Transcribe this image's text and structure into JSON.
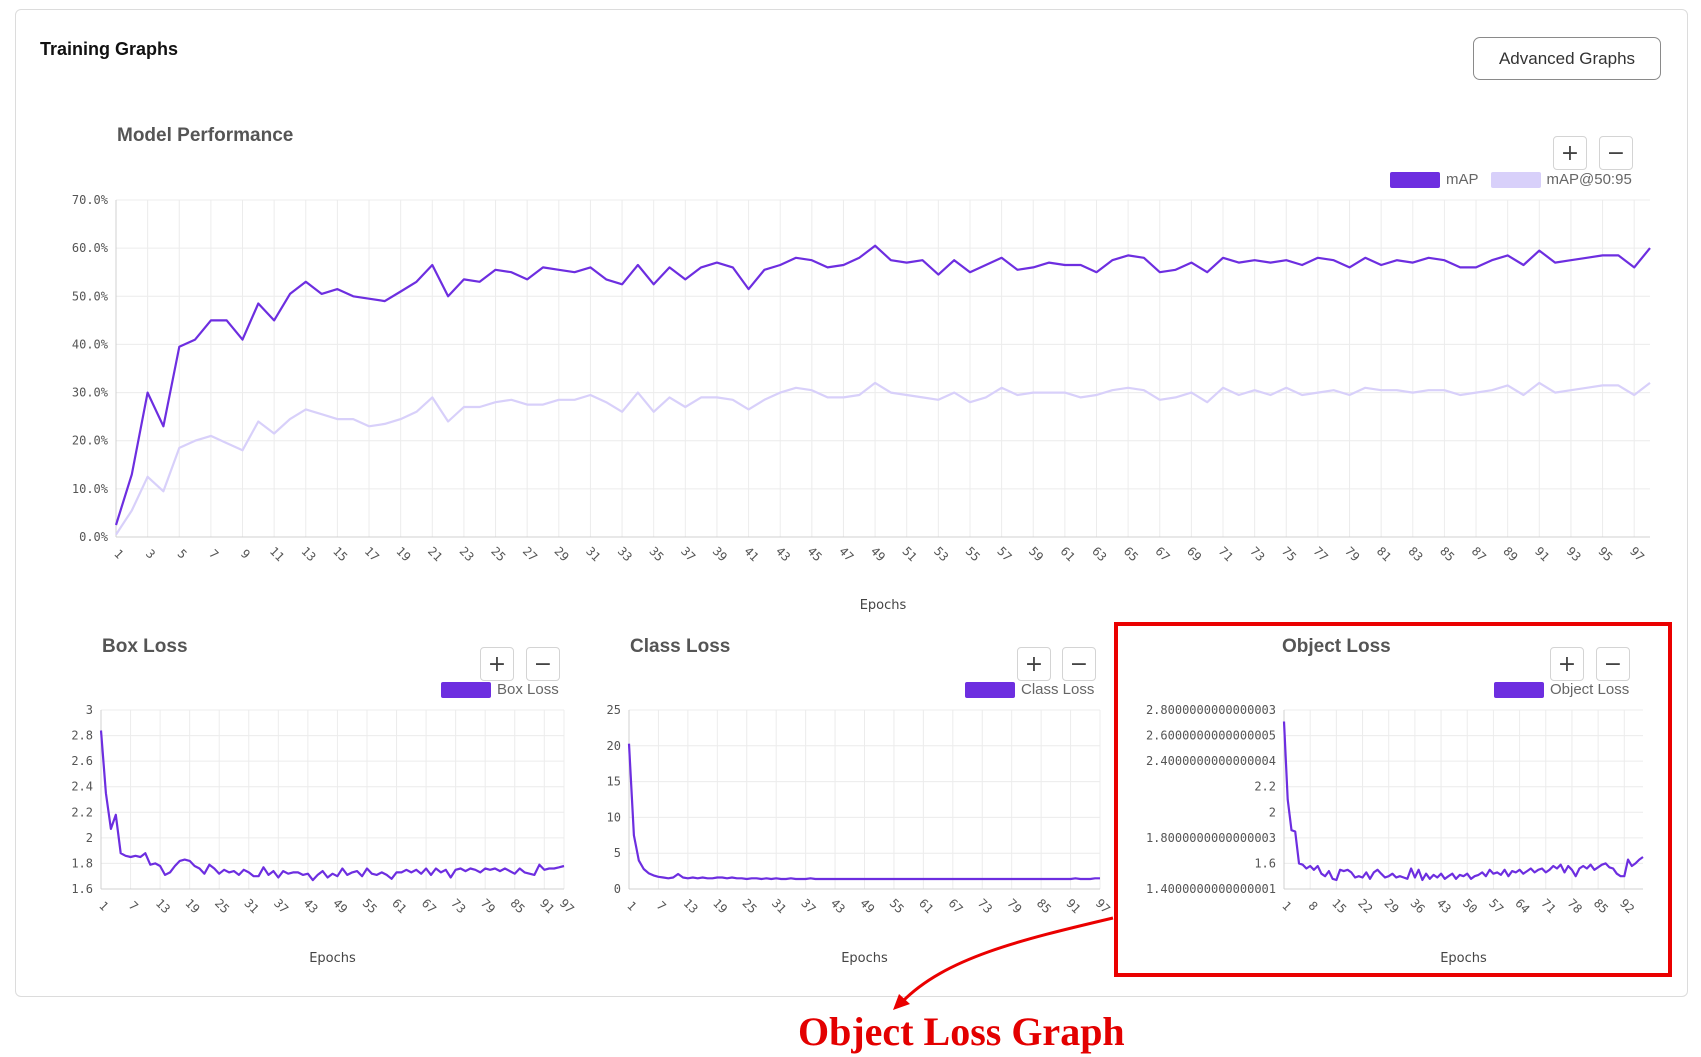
{
  "header": {
    "title": "Training Graphs",
    "advanced_button": "Advanced Graphs"
  },
  "zoom_controls": {
    "plus": "+",
    "minus": "−"
  },
  "colors": {
    "map": "#6d2ee0",
    "map5095": "#d8d0fa",
    "loss": "#6d2ee0",
    "highlight": "#ea0000"
  },
  "annotation": {
    "label": "Object Loss Graph"
  },
  "chart_data": [
    {
      "id": "perf",
      "type": "line",
      "title": "Model Performance",
      "xlabel": "Epochs",
      "ylabel": "",
      "x": [
        1,
        2,
        3,
        4,
        5,
        6,
        7,
        8,
        9,
        10,
        11,
        12,
        13,
        14,
        15,
        16,
        17,
        18,
        19,
        20,
        21,
        22,
        23,
        24,
        25,
        26,
        27,
        28,
        29,
        30,
        31,
        32,
        33,
        34,
        35,
        36,
        37,
        38,
        39,
        40,
        41,
        42,
        43,
        44,
        45,
        46,
        47,
        48,
        49,
        50,
        51,
        52,
        53,
        54,
        55,
        56,
        57,
        58,
        59,
        60,
        61,
        62,
        63,
        64,
        65,
        66,
        67,
        68,
        69,
        70,
        71,
        72,
        73,
        74,
        75,
        76,
        77,
        78,
        79,
        80,
        81,
        82,
        83,
        84,
        85,
        86,
        87,
        88,
        89,
        90,
        91,
        92,
        93,
        94,
        95,
        96,
        97,
        98
      ],
      "xticks": [
        "1",
        "3",
        "5",
        "7",
        "9",
        "11",
        "13",
        "15",
        "17",
        "19",
        "21",
        "23",
        "25",
        "27",
        "29",
        "31",
        "33",
        "35",
        "37",
        "39",
        "41",
        "43",
        "45",
        "47",
        "49",
        "51",
        "53",
        "55",
        "57",
        "59",
        "61",
        "63",
        "65",
        "67",
        "69",
        "71",
        "73",
        "75",
        "77",
        "79",
        "81",
        "83",
        "85",
        "87",
        "89",
        "91",
        "93",
        "95",
        "97"
      ],
      "yticks": [
        "0.0%",
        "10.0%",
        "20.0%",
        "30.0%",
        "40.0%",
        "50.0%",
        "60.0%",
        "70.0%"
      ],
      "ylim": [
        0,
        70
      ],
      "grid": true,
      "legend_position": "top-right",
      "series": [
        {
          "name": "mAP",
          "color": "#6d2ee0",
          "values": [
            2.5,
            13,
            30,
            23,
            39.5,
            41,
            45,
            45,
            41,
            48.5,
            45,
            50.5,
            53,
            50.5,
            51.5,
            50,
            49.5,
            49,
            51,
            53,
            56.5,
            50,
            53.5,
            53,
            55.5,
            55,
            53.5,
            56,
            55.5,
            55,
            56,
            53.5,
            52.5,
            56.5,
            52.5,
            56,
            53.5,
            56,
            57,
            56,
            51.5,
            55.5,
            56.5,
            58,
            57.5,
            56,
            56.5,
            58,
            60.5,
            57.5,
            57,
            57.5,
            54.5,
            57.5,
            55,
            56.5,
            58,
            55.5,
            56,
            57,
            56.5,
            56.5,
            55,
            57.5,
            58.5,
            58,
            55,
            55.5,
            57,
            55,
            58,
            57,
            57.5,
            57,
            57.5,
            56.5,
            58,
            57.5,
            56,
            58,
            56.5,
            57.5,
            57,
            58,
            57.5,
            56,
            56,
            57.5,
            58.5,
            56.5,
            59.5,
            57,
            57.5,
            58,
            58.5,
            58.5,
            56,
            60
          ]
        },
        {
          "name": "mAP@50:95",
          "color": "#d8d0fa",
          "values": [
            0.5,
            5.5,
            12.5,
            9.5,
            18.5,
            20,
            21,
            19.5,
            18,
            24,
            21.5,
            24.5,
            26.5,
            25.5,
            24.5,
            24.5,
            23,
            23.5,
            24.5,
            26,
            29,
            24,
            27,
            27,
            28,
            28.5,
            27.5,
            27.5,
            28.5,
            28.5,
            29.5,
            28,
            26,
            30,
            26,
            29,
            27,
            29,
            29,
            28.5,
            26.5,
            28.5,
            30,
            31,
            30.5,
            29,
            29,
            29.5,
            32,
            30,
            29.5,
            29,
            28.5,
            30,
            28,
            29,
            31,
            29.5,
            30,
            30,
            30,
            29,
            29.5,
            30.5,
            31,
            30.5,
            28.5,
            29,
            30,
            28,
            31,
            29.5,
            30.5,
            29.5,
            31,
            29.5,
            30,
            30.5,
            29.5,
            31,
            30.5,
            30.5,
            30,
            30.5,
            30.5,
            29.5,
            30,
            30.5,
            31.5,
            29.5,
            32,
            30,
            30.5,
            31,
            31.5,
            31.5,
            29.5,
            32
          ]
        }
      ]
    },
    {
      "id": "box",
      "type": "line",
      "title": "Box Loss",
      "xlabel": "Epochs",
      "ylabel": "",
      "xticks": [
        "1",
        "7",
        "13",
        "19",
        "25",
        "31",
        "37",
        "43",
        "49",
        "55",
        "61",
        "67",
        "73",
        "79",
        "85",
        "91",
        "97"
      ],
      "yticks": [
        "1.6",
        "1.8",
        "2",
        "2.2",
        "2.4",
        "2.6",
        "2.8",
        "3"
      ],
      "ylim": [
        1.6,
        3.0
      ],
      "grid": true,
      "legend_position": "top-right",
      "series": [
        {
          "name": "Box Loss",
          "color": "#6d2ee0",
          "values": [
            2.84,
            2.35,
            2.07,
            2.18,
            1.88,
            1.86,
            1.85,
            1.86,
            1.85,
            1.88,
            1.79,
            1.8,
            1.78,
            1.71,
            1.73,
            1.78,
            1.82,
            1.83,
            1.82,
            1.78,
            1.76,
            1.72,
            1.79,
            1.76,
            1.72,
            1.75,
            1.73,
            1.74,
            1.71,
            1.75,
            1.73,
            1.7,
            1.7,
            1.77,
            1.71,
            1.74,
            1.69,
            1.74,
            1.72,
            1.73,
            1.73,
            1.71,
            1.72,
            1.67,
            1.71,
            1.74,
            1.69,
            1.72,
            1.7,
            1.76,
            1.71,
            1.73,
            1.74,
            1.7,
            1.76,
            1.72,
            1.71,
            1.73,
            1.71,
            1.68,
            1.73,
            1.73,
            1.75,
            1.73,
            1.75,
            1.72,
            1.76,
            1.71,
            1.76,
            1.73,
            1.75,
            1.69,
            1.75,
            1.76,
            1.74,
            1.76,
            1.75,
            1.73,
            1.76,
            1.75,
            1.76,
            1.74,
            1.76,
            1.74,
            1.72,
            1.76,
            1.73,
            1.72,
            1.71,
            1.79,
            1.75,
            1.76,
            1.76,
            1.77,
            1.78
          ]
        }
      ]
    },
    {
      "id": "cls",
      "type": "line",
      "title": "Class Loss",
      "xlabel": "Epochs",
      "ylabel": "",
      "xticks": [
        "1",
        "7",
        "13",
        "19",
        "25",
        "31",
        "37",
        "43",
        "49",
        "55",
        "61",
        "67",
        "73",
        "79",
        "85",
        "91",
        "97"
      ],
      "yticks": [
        "0",
        "5",
        "10",
        "15",
        "20",
        "25"
      ],
      "ylim": [
        0,
        25
      ],
      "grid": true,
      "legend_position": "top-right",
      "series": [
        {
          "name": "Class Loss",
          "color": "#6d2ee0",
          "values": [
            20.3,
            7.5,
            4,
            2.8,
            2.2,
            1.9,
            1.7,
            1.6,
            1.5,
            1.6,
            2.1,
            1.6,
            1.5,
            1.6,
            1.5,
            1.6,
            1.5,
            1.5,
            1.6,
            1.6,
            1.5,
            1.6,
            1.5,
            1.5,
            1.4,
            1.5,
            1.5,
            1.4,
            1.5,
            1.4,
            1.5,
            1.4,
            1.4,
            1.5,
            1.4,
            1.4,
            1.4,
            1.5,
            1.4,
            1.4,
            1.4,
            1.4,
            1.4,
            1.4,
            1.4,
            1.4,
            1.4,
            1.4,
            1.4,
            1.4,
            1.4,
            1.4,
            1.4,
            1.4,
            1.4,
            1.4,
            1.4,
            1.4,
            1.4,
            1.4,
            1.4,
            1.4,
            1.4,
            1.4,
            1.4,
            1.4,
            1.4,
            1.4,
            1.4,
            1.4,
            1.4,
            1.4,
            1.4,
            1.4,
            1.4,
            1.4,
            1.4,
            1.4,
            1.4,
            1.4,
            1.4,
            1.4,
            1.4,
            1.4,
            1.4,
            1.4,
            1.4,
            1.4,
            1.4,
            1.4,
            1.4,
            1.5,
            1.4,
            1.4,
            1.4,
            1.5,
            1.5
          ]
        }
      ]
    },
    {
      "id": "obj",
      "type": "line",
      "title": "Object Loss",
      "xlabel": "Epochs",
      "ylabel": "",
      "xticks": [
        "1",
        "8",
        "15",
        "22",
        "29",
        "36",
        "43",
        "50",
        "57",
        "64",
        "71",
        "78",
        "85",
        "92"
      ],
      "yticks": [
        "1.4000000000000001",
        "1.6",
        "1.8000000000000003",
        "2",
        "2.2",
        "2.4000000000000004",
        "2.6000000000000005",
        "2.8000000000000003"
      ],
      "ylim": [
        1.4,
        2.8
      ],
      "grid": true,
      "legend_position": "top-right",
      "series": [
        {
          "name": "Object Loss",
          "color": "#6d2ee0",
          "values": [
            2.71,
            2.1,
            1.86,
            1.85,
            1.6,
            1.59,
            1.56,
            1.58,
            1.55,
            1.58,
            1.52,
            1.5,
            1.54,
            1.48,
            1.47,
            1.55,
            1.54,
            1.55,
            1.53,
            1.49,
            1.5,
            1.49,
            1.53,
            1.48,
            1.53,
            1.55,
            1.52,
            1.49,
            1.5,
            1.52,
            1.49,
            1.5,
            1.49,
            1.48,
            1.56,
            1.49,
            1.55,
            1.47,
            1.52,
            1.48,
            1.51,
            1.49,
            1.52,
            1.48,
            1.5,
            1.52,
            1.48,
            1.51,
            1.5,
            1.52,
            1.48,
            1.5,
            1.51,
            1.53,
            1.5,
            1.55,
            1.52,
            1.53,
            1.51,
            1.55,
            1.5,
            1.54,
            1.53,
            1.55,
            1.52,
            1.54,
            1.56,
            1.53,
            1.55,
            1.56,
            1.53,
            1.55,
            1.58,
            1.56,
            1.59,
            1.53,
            1.58,
            1.55,
            1.5,
            1.56,
            1.58,
            1.56,
            1.59,
            1.55,
            1.57,
            1.59,
            1.6,
            1.57,
            1.56,
            1.52,
            1.5,
            1.5,
            1.63,
            1.58,
            1.6,
            1.63,
            1.65
          ]
        }
      ]
    }
  ]
}
